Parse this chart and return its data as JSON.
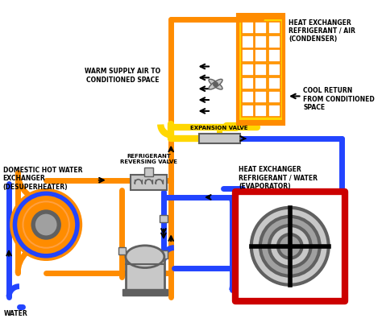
{
  "bg_color": "#ffffff",
  "orange": "#FF8C00",
  "blue": "#2244FF",
  "red": "#CC0000",
  "yellow": "#FFD700",
  "gray": "#A0A0A0",
  "lgray": "#C8C8C8",
  "dgray": "#606060",
  "black": "#000000",
  "pipe_lw": 5,
  "labels": {
    "condenser": "HEAT EXCHANGER\nREFRIGERANT / AIR\n(CONDENSER)",
    "warm_air": "WARM SUPPLY AIR TO\nCONDITIONED SPACE",
    "cool_return": "COOL RETURN\nFROM CONDITIONED\nSPACE",
    "expansion": "EXPANSION VALVE",
    "reversing": "REFRIGERANT\nREVERSING VALVE",
    "dhw": "DOMESTIC HOT WATER\nEXCHANGER\n(DESUPERHEATER)",
    "evaporator": "HEAT EXCHANGER\nREFRIGERANT / WATER\n(EVAPORATOR)",
    "water": "WATER"
  }
}
